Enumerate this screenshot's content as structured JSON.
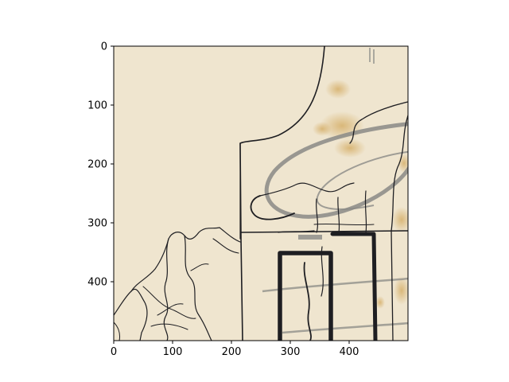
{
  "image_axes": {
    "x_ticks": [
      "0",
      "100",
      "200",
      "300",
      "400"
    ],
    "y_ticks": [
      "0",
      "100",
      "200",
      "300",
      "400"
    ],
    "x_range": [
      0,
      500
    ],
    "y_range": [
      0,
      500
    ],
    "y_inverted": true
  },
  "colors": {
    "paper": "#efe5cf",
    "ink": "#1e1e22",
    "graphite": "#8a8a86",
    "stain": "#d8b676"
  }
}
